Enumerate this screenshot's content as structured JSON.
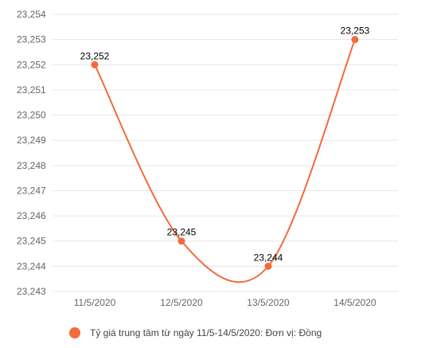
{
  "chart_data": {
    "type": "line",
    "categories": [
      "11/5/2020",
      "12/5/2020",
      "13/5/2020",
      "14/5/2020"
    ],
    "series": [
      {
        "name": "Tỷ giá trung tâm từ ngày 11/5-14/5/2020: Đơn vị: Đồng",
        "values": [
          23252,
          23245,
          23244,
          23253
        ],
        "value_labels": [
          "23,252",
          "23,245",
          "23,244",
          "23,253"
        ]
      }
    ],
    "y_ticks": [
      23243,
      23244,
      23245,
      23246,
      23247,
      23248,
      23249,
      23250,
      23251,
      23252,
      23253,
      23254
    ],
    "y_tick_labels": [
      "23,243",
      "23,244",
      "23,245",
      "23,246",
      "23,247",
      "23,248",
      "23,249",
      "23,250",
      "23,251",
      "23,252",
      "23,253",
      "23,254"
    ],
    "ylim": [
      23243,
      23254
    ],
    "grid": true,
    "legend_position": "bottom",
    "line_color": "#f26b3a",
    "grid_color": "#e6e6e6"
  }
}
